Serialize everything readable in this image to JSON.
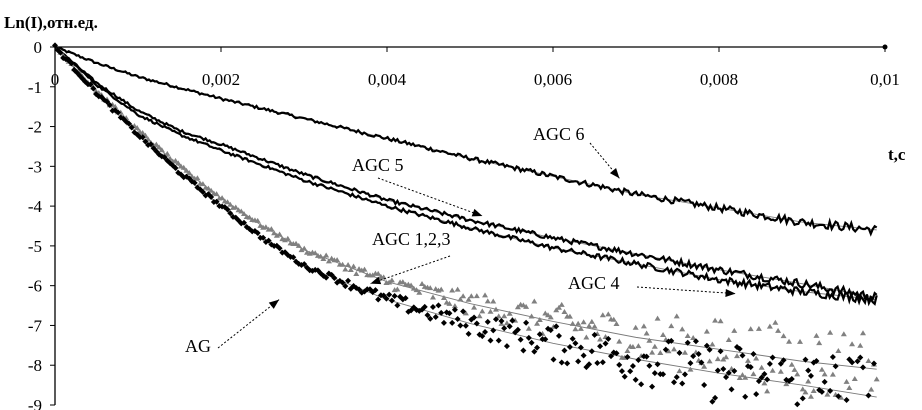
{
  "chart_data": {
    "type": "scatter",
    "title": "",
    "xlabel": "t,c",
    "ylabel": "Ln(I),отн.ед.",
    "xlim": [
      0,
      0.01
    ],
    "ylim": [
      -9,
      0
    ],
    "x_ticks": [
      0,
      0.002,
      0.004,
      0.006,
      0.008,
      0.01
    ],
    "x_tick_labels": [
      "0",
      "0,002",
      "0,004",
      "0,006",
      "0,008",
      "0,01"
    ],
    "y_ticks": [
      0,
      -1,
      -2,
      -3,
      -4,
      -5,
      -6,
      -7,
      -8,
      -9
    ],
    "y_tick_labels": [
      "0",
      "-1",
      "-2",
      "-3",
      "-4",
      "-5",
      "-6",
      "-7",
      "-8",
      "-9"
    ],
    "grid": false,
    "legend": "none",
    "series": [
      {
        "name": "AGC 6",
        "style": "line",
        "color": "#000000",
        "x": [
          0,
          0.0005,
          0.001,
          0.002,
          0.003,
          0.004,
          0.005,
          0.006,
          0.007,
          0.008,
          0.009,
          0.0099
        ],
        "y": [
          0,
          -0.4,
          -0.75,
          -1.3,
          -1.8,
          -2.3,
          -2.8,
          -3.25,
          -3.7,
          -4.05,
          -4.4,
          -4.6
        ]
      },
      {
        "name": "AGC 5",
        "style": "line",
        "color": "#000000",
        "x": [
          0,
          0.0005,
          0.001,
          0.0015,
          0.002,
          0.003,
          0.004,
          0.005,
          0.006,
          0.007,
          0.008,
          0.009,
          0.0099
        ],
        "y": [
          0,
          -0.9,
          -1.6,
          -2.1,
          -2.45,
          -3.2,
          -3.85,
          -4.35,
          -4.8,
          -5.2,
          -5.6,
          -5.95,
          -6.3
        ]
      },
      {
        "name": "AGC 4",
        "style": "line",
        "color": "#000000",
        "x": [
          0,
          0.0005,
          0.001,
          0.0015,
          0.002,
          0.003,
          0.004,
          0.005,
          0.006,
          0.007,
          0.008,
          0.009,
          0.0099
        ],
        "y": [
          0,
          -0.95,
          -1.7,
          -2.2,
          -2.6,
          -3.35,
          -4.0,
          -4.55,
          -5.05,
          -5.45,
          -5.85,
          -6.15,
          -6.35
        ]
      },
      {
        "name": "AGC 1,2,3",
        "style": "markers",
        "color": "#808080",
        "x": [
          0,
          0.0005,
          0.001,
          0.0015,
          0.002,
          0.0025,
          0.003,
          0.004,
          0.005,
          0.006,
          0.007,
          0.008,
          0.009,
          0.0099
        ],
        "y": [
          0,
          -1.1,
          -2.1,
          -3.0,
          -3.8,
          -4.5,
          -5.1,
          -5.9,
          -6.45,
          -6.9,
          -7.3,
          -7.6,
          -7.9,
          -8.1
        ]
      },
      {
        "name": "AG",
        "style": "markers",
        "color": "#000000",
        "x": [
          0,
          0.0005,
          0.001,
          0.0015,
          0.002,
          0.0025,
          0.003,
          0.004,
          0.005,
          0.006,
          0.007,
          0.008,
          0.009,
          0.0099
        ],
        "y": [
          0,
          -1.15,
          -2.2,
          -3.15,
          -4.0,
          -4.8,
          -5.5,
          -6.35,
          -6.95,
          -7.45,
          -7.85,
          -8.2,
          -8.5,
          -8.8
        ]
      }
    ],
    "annotations": [
      {
        "text": "AGC 6",
        "target_x": 0.0068,
        "target_y": -3.3
      },
      {
        "text": "AGC 5",
        "target_x": 0.00515,
        "target_y": -4.25
      },
      {
        "text": "AGC 1,2,3",
        "target_x": 0.0038,
        "target_y": -5.95
      },
      {
        "text": "AGC 4",
        "target_x": 0.0082,
        "target_y": -6.2
      },
      {
        "text": "AG",
        "target_x": 0.0027,
        "target_y": -6.35
      }
    ]
  }
}
